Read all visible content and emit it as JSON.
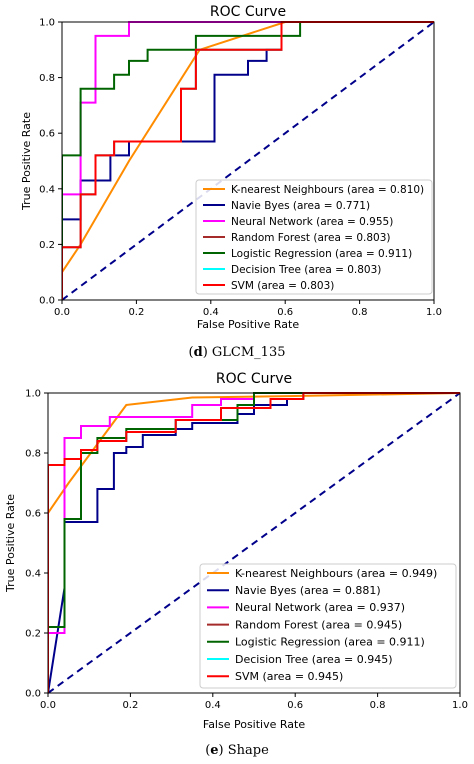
{
  "chart_data": [
    {
      "type": "line",
      "title": "ROC Curve",
      "xlabel": "False Positive Rate",
      "ylabel": "True Positive Rate",
      "xlim": [
        0,
        1
      ],
      "ylim": [
        0,
        1
      ],
      "ticks": [
        "0.0",
        "0.2",
        "0.4",
        "0.6",
        "0.8",
        "1.0"
      ],
      "caption_prefix": "(",
      "caption_bold": "d",
      "caption_suffix": ") GLCM_135",
      "legend_position": "lower right",
      "diagonal_color": "#00008b",
      "series": [
        {
          "name": "K-nearest Neighbours (area = 0.810)",
          "color": "#ff8c00",
          "points": [
            [
              0,
              0.1
            ],
            [
              0.05,
              0.2
            ],
            [
              0.18,
              0.5
            ],
            [
              0.37,
              0.9
            ],
            [
              0.6,
              1.0
            ],
            [
              1,
              1
            ]
          ]
        },
        {
          "name": "Navie Byes (area = 0.771)",
          "color": "#00008b",
          "points": [
            [
              0,
              0
            ],
            [
              0,
              0.29
            ],
            [
              0.05,
              0.29
            ],
            [
              0.05,
              0.43
            ],
            [
              0.13,
              0.43
            ],
            [
              0.13,
              0.52
            ],
            [
              0.18,
              0.52
            ],
            [
              0.18,
              0.57
            ],
            [
              0.41,
              0.57
            ],
            [
              0.41,
              0.81
            ],
            [
              0.5,
              0.81
            ],
            [
              0.5,
              0.86
            ],
            [
              0.55,
              0.86
            ],
            [
              0.55,
              0.9
            ],
            [
              0.59,
              0.9
            ],
            [
              0.59,
              1.0
            ],
            [
              1,
              1
            ]
          ]
        },
        {
          "name": "Neural Network (area = 0.955)",
          "color": "#ff00ff",
          "points": [
            [
              0,
              0
            ],
            [
              0,
              0.38
            ],
            [
              0.05,
              0.38
            ],
            [
              0.05,
              0.71
            ],
            [
              0.09,
              0.71
            ],
            [
              0.09,
              0.95
            ],
            [
              0.18,
              0.95
            ],
            [
              0.18,
              1.0
            ],
            [
              1,
              1
            ]
          ]
        },
        {
          "name": "Random Forest (area = 0.803)",
          "color": "#a52a2a",
          "points": [
            [
              0,
              0
            ],
            [
              0,
              0.19
            ],
            [
              0.05,
              0.19
            ],
            [
              0.05,
              0.38
            ],
            [
              0.09,
              0.38
            ],
            [
              0.09,
              0.52
            ],
            [
              0.14,
              0.52
            ],
            [
              0.14,
              0.57
            ],
            [
              0.32,
              0.57
            ],
            [
              0.32,
              0.76
            ],
            [
              0.36,
              0.76
            ],
            [
              0.36,
              0.9
            ],
            [
              0.59,
              0.9
            ],
            [
              0.59,
              1.0
            ],
            [
              1,
              1
            ]
          ]
        },
        {
          "name": "Logistic Regression (area = 0.911)",
          "color": "#006400",
          "points": [
            [
              0,
              0
            ],
            [
              0,
              0.52
            ],
            [
              0.05,
              0.52
            ],
            [
              0.05,
              0.76
            ],
            [
              0.14,
              0.76
            ],
            [
              0.14,
              0.81
            ],
            [
              0.18,
              0.81
            ],
            [
              0.18,
              0.86
            ],
            [
              0.23,
              0.86
            ],
            [
              0.23,
              0.9
            ],
            [
              0.36,
              0.9
            ],
            [
              0.36,
              0.95
            ],
            [
              0.64,
              0.95
            ],
            [
              0.64,
              1.0
            ],
            [
              1,
              1
            ]
          ]
        },
        {
          "name": "Decision Tree (area = 0.803)",
          "color": "#00ffff",
          "points": [
            [
              0,
              0
            ],
            [
              0,
              0.19
            ],
            [
              0.05,
              0.19
            ],
            [
              0.05,
              0.38
            ],
            [
              0.09,
              0.38
            ],
            [
              0.09,
              0.52
            ],
            [
              0.14,
              0.52
            ],
            [
              0.14,
              0.57
            ],
            [
              0.32,
              0.57
            ],
            [
              0.32,
              0.76
            ],
            [
              0.36,
              0.76
            ],
            [
              0.36,
              0.9
            ],
            [
              0.59,
              0.9
            ],
            [
              0.59,
              1.0
            ],
            [
              1,
              1
            ]
          ]
        },
        {
          "name": "SVM (area = 0.803)",
          "color": "#ff0000",
          "points": [
            [
              0,
              0
            ],
            [
              0,
              0.19
            ],
            [
              0.05,
              0.19
            ],
            [
              0.05,
              0.38
            ],
            [
              0.09,
              0.38
            ],
            [
              0.09,
              0.52
            ],
            [
              0.14,
              0.52
            ],
            [
              0.14,
              0.57
            ],
            [
              0.32,
              0.57
            ],
            [
              0.32,
              0.76
            ],
            [
              0.36,
              0.76
            ],
            [
              0.36,
              0.9
            ],
            [
              0.59,
              0.9
            ],
            [
              0.59,
              1.0
            ],
            [
              1,
              1
            ]
          ]
        }
      ]
    },
    {
      "type": "line",
      "title": "ROC Curve",
      "xlabel": "False Positive Rate",
      "ylabel": "True Positive Rate",
      "xlim": [
        0,
        1
      ],
      "ylim": [
        0,
        1
      ],
      "ticks": [
        "0.0",
        "0.2",
        "0.4",
        "0.6",
        "0.8",
        "1.0"
      ],
      "caption_prefix": "(",
      "caption_bold": "e",
      "caption_suffix": ") Shape",
      "legend_position": "lower right",
      "diagonal_color": "#00008b",
      "series": [
        {
          "name": "K-nearest Neighbours (area = 0.949)",
          "color": "#ff8c00",
          "points": [
            [
              0,
              0.6
            ],
            [
              0.05,
              0.7
            ],
            [
              0.19,
              0.96
            ],
            [
              0.35,
              0.985
            ],
            [
              0.6,
              0.99
            ],
            [
              1,
              1
            ]
          ]
        },
        {
          "name": "Navie Byes (area = 0.881)",
          "color": "#00008b",
          "points": [
            [
              0,
              0
            ],
            [
              0.04,
              0.35
            ],
            [
              0.04,
              0.57
            ],
            [
              0.12,
              0.57
            ],
            [
              0.12,
              0.68
            ],
            [
              0.16,
              0.68
            ],
            [
              0.16,
              0.8
            ],
            [
              0.19,
              0.8
            ],
            [
              0.19,
              0.82
            ],
            [
              0.23,
              0.82
            ],
            [
              0.23,
              0.86
            ],
            [
              0.31,
              0.86
            ],
            [
              0.31,
              0.88
            ],
            [
              0.35,
              0.88
            ],
            [
              0.35,
              0.9
            ],
            [
              0.46,
              0.9
            ],
            [
              0.46,
              0.93
            ],
            [
              0.5,
              0.93
            ],
            [
              0.5,
              0.96
            ],
            [
              0.58,
              0.96
            ],
            [
              0.58,
              0.98
            ],
            [
              0.62,
              0.98
            ],
            [
              0.62,
              1.0
            ],
            [
              1,
              1
            ]
          ]
        },
        {
          "name": "Neural Network (area = 0.937)",
          "color": "#ff00ff",
          "points": [
            [
              0,
              0.2
            ],
            [
              0.04,
              0.2
            ],
            [
              0.04,
              0.85
            ],
            [
              0.08,
              0.85
            ],
            [
              0.08,
              0.89
            ],
            [
              0.15,
              0.89
            ],
            [
              0.15,
              0.92
            ],
            [
              0.35,
              0.92
            ],
            [
              0.35,
              0.96
            ],
            [
              0.42,
              0.96
            ],
            [
              0.42,
              0.98
            ],
            [
              0.5,
              0.98
            ],
            [
              0.5,
              1.0
            ],
            [
              1,
              1
            ]
          ]
        },
        {
          "name": "Random Forest (area = 0.945)",
          "color": "#a52a2a",
          "points": [
            [
              0,
              0
            ],
            [
              0,
              0.76
            ],
            [
              0.04,
              0.76
            ],
            [
              0.04,
              0.78
            ],
            [
              0.08,
              0.78
            ],
            [
              0.08,
              0.81
            ],
            [
              0.12,
              0.81
            ],
            [
              0.12,
              0.84
            ],
            [
              0.19,
              0.84
            ],
            [
              0.19,
              0.87
            ],
            [
              0.31,
              0.87
            ],
            [
              0.31,
              0.91
            ],
            [
              0.42,
              0.91
            ],
            [
              0.42,
              0.95
            ],
            [
              0.54,
              0.95
            ],
            [
              0.54,
              0.98
            ],
            [
              0.62,
              0.98
            ],
            [
              0.62,
              1.0
            ],
            [
              1,
              1
            ]
          ]
        },
        {
          "name": "Logistic Regression (area = 0.911)",
          "color": "#006400",
          "points": [
            [
              0,
              0.22
            ],
            [
              0.04,
              0.22
            ],
            [
              0.04,
              0.58
            ],
            [
              0.08,
              0.58
            ],
            [
              0.08,
              0.8
            ],
            [
              0.12,
              0.8
            ],
            [
              0.12,
              0.85
            ],
            [
              0.19,
              0.85
            ],
            [
              0.19,
              0.88
            ],
            [
              0.31,
              0.88
            ],
            [
              0.31,
              0.91
            ],
            [
              0.46,
              0.91
            ],
            [
              0.46,
              0.96
            ],
            [
              0.5,
              0.96
            ],
            [
              0.5,
              1.0
            ],
            [
              1,
              1
            ]
          ]
        },
        {
          "name": "Decision Tree (area = 0.945)",
          "color": "#00ffff",
          "points": [
            [
              0,
              0
            ],
            [
              0,
              0.76
            ],
            [
              0.04,
              0.76
            ],
            [
              0.04,
              0.78
            ],
            [
              0.08,
              0.78
            ],
            [
              0.08,
              0.81
            ],
            [
              0.12,
              0.81
            ],
            [
              0.12,
              0.84
            ],
            [
              0.19,
              0.84
            ],
            [
              0.19,
              0.87
            ],
            [
              0.31,
              0.87
            ],
            [
              0.31,
              0.91
            ],
            [
              0.42,
              0.91
            ],
            [
              0.42,
              0.95
            ],
            [
              0.54,
              0.95
            ],
            [
              0.54,
              0.98
            ],
            [
              0.62,
              0.98
            ],
            [
              0.62,
              1.0
            ],
            [
              1,
              1
            ]
          ]
        },
        {
          "name": "SVM (area = 0.945)",
          "color": "#ff0000",
          "points": [
            [
              0,
              0
            ],
            [
              0,
              0.76
            ],
            [
              0.04,
              0.76
            ],
            [
              0.04,
              0.78
            ],
            [
              0.08,
              0.78
            ],
            [
              0.08,
              0.81
            ],
            [
              0.12,
              0.81
            ],
            [
              0.12,
              0.84
            ],
            [
              0.19,
              0.84
            ],
            [
              0.19,
              0.87
            ],
            [
              0.31,
              0.87
            ],
            [
              0.31,
              0.91
            ],
            [
              0.42,
              0.91
            ],
            [
              0.42,
              0.95
            ],
            [
              0.54,
              0.95
            ],
            [
              0.54,
              0.98
            ],
            [
              0.62,
              0.98
            ],
            [
              0.62,
              1.0
            ],
            [
              1,
              1
            ]
          ]
        }
      ]
    }
  ]
}
